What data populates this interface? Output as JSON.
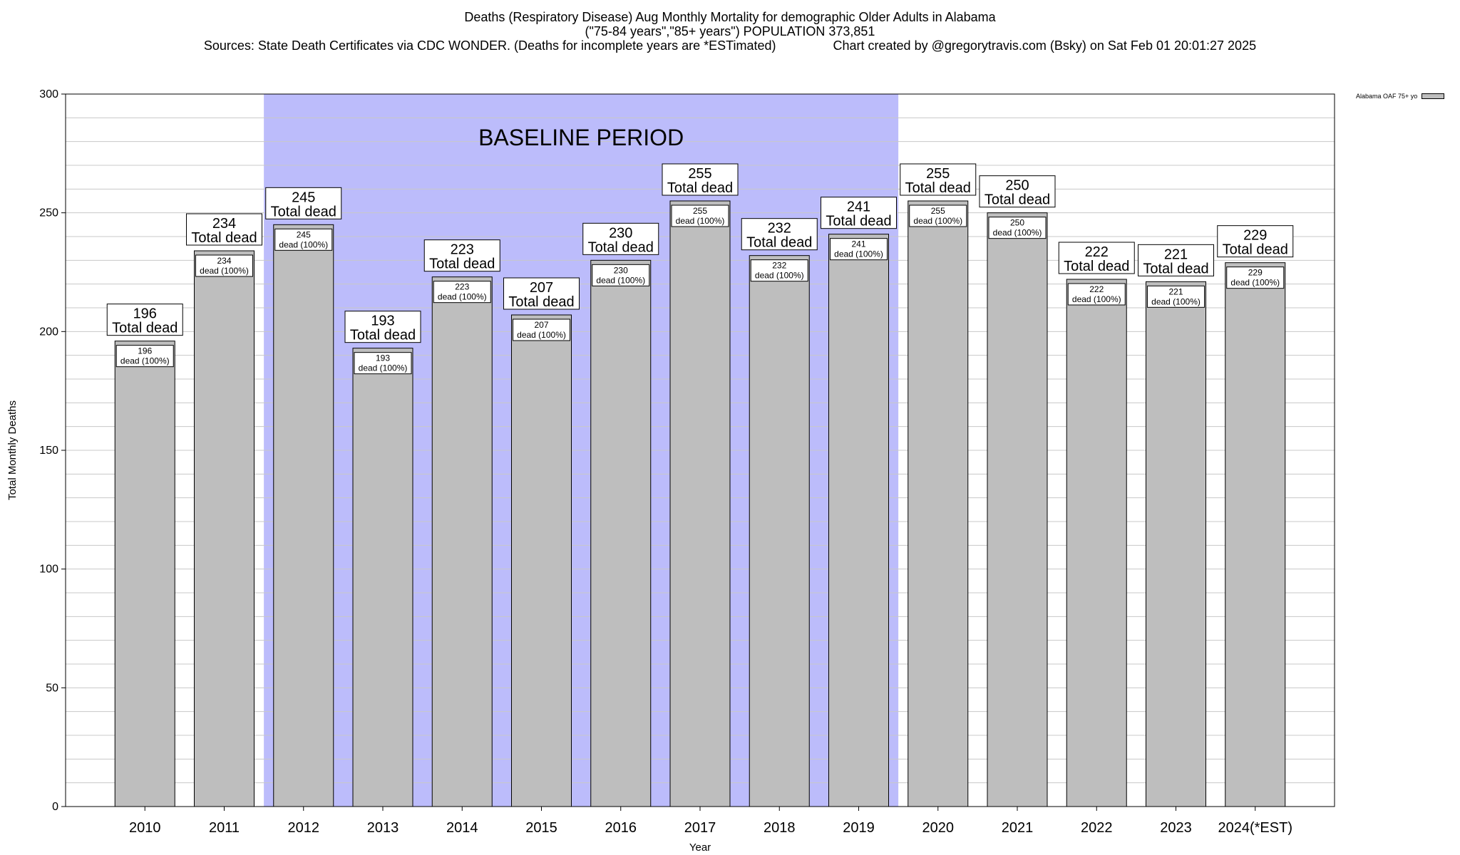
{
  "header": {
    "line1": "Deaths (Respiratory Disease) Aug Monthly Mortality for demographic Older Adults in Alabama",
    "line2": "(\"75-84 years\",\"85+ years\") POPULATION 373,851",
    "line3": "Sources: State Death Certificates via CDC WONDER. (Deaths for incomplete years are *ESTimated)                Chart created by @gregorytravis.com (Bsky) on Sat Feb 01 20:01:27 2025"
  },
  "chart_data": {
    "type": "bar",
    "categories": [
      "2010",
      "2011",
      "2012",
      "2013",
      "2014",
      "2015",
      "2016",
      "2017",
      "2018",
      "2019",
      "2020",
      "2021",
      "2022",
      "2023",
      "2024(*EST)"
    ],
    "series": [
      {
        "name": "Alabama OAF 75+ yo",
        "values": [
          196,
          234,
          245,
          193,
          223,
          207,
          230,
          255,
          232,
          241,
          255,
          250,
          222,
          221,
          229
        ]
      }
    ],
    "outer_label_suffix": "Total dead",
    "inner_label_suffix": "dead (100%)",
    "xlabel": "Year",
    "ylabel": "Total Monthly Deaths",
    "ylim": [
      0,
      300
    ],
    "yticks": [
      0,
      50,
      100,
      150,
      200,
      250,
      300
    ],
    "minor_grid_step": 10,
    "grid": true,
    "baseline_period": {
      "label": "BASELINE PERIOD",
      "from_category": "2012",
      "to_category": "2019"
    },
    "legend_position": "top-right",
    "colors": {
      "bar": "#bebebe",
      "baseline_band": "#bcbcfb",
      "grid": "#c8c8c8"
    }
  }
}
